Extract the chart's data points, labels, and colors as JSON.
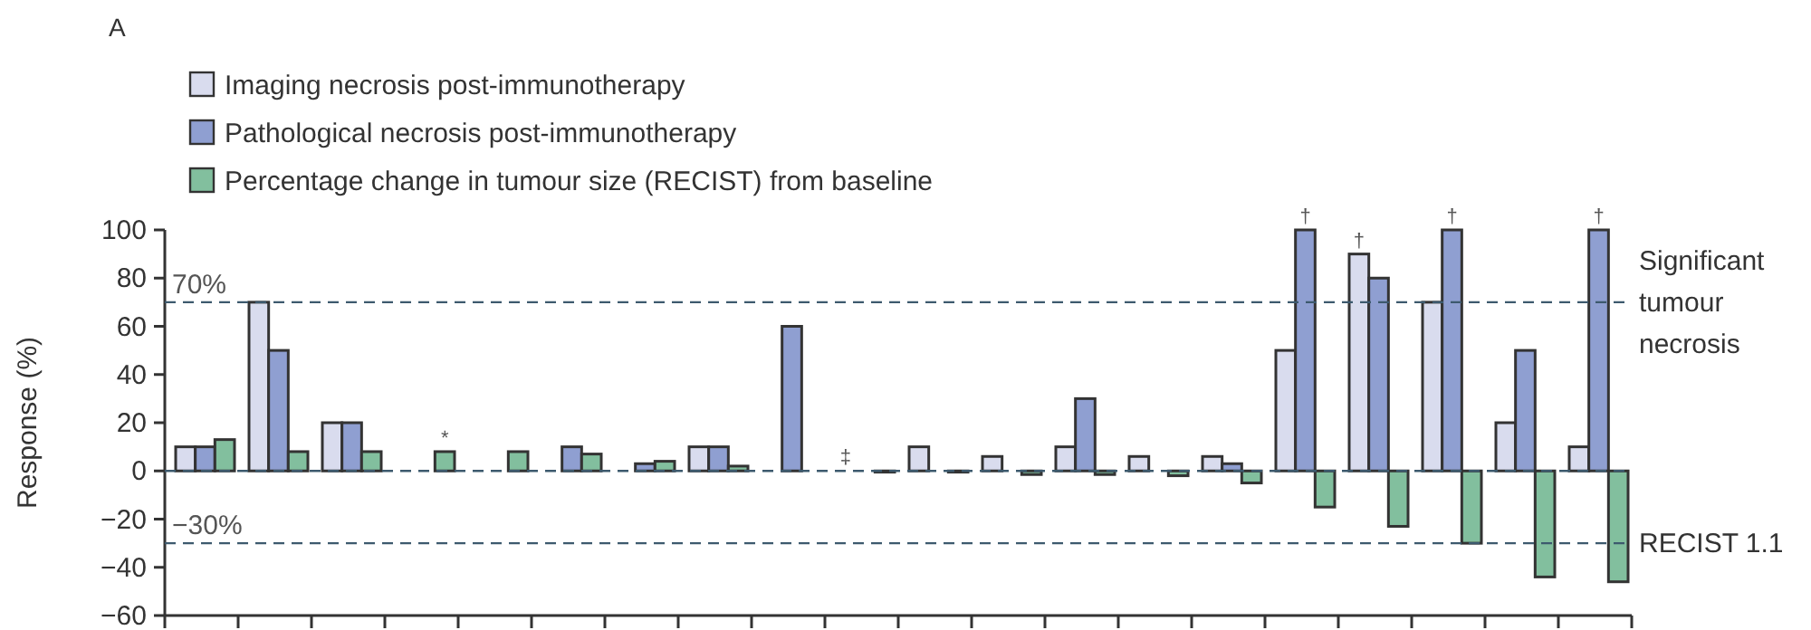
{
  "chart_data": {
    "type": "bar",
    "title": "A",
    "ylabel": "Response (%)",
    "categories": [
      null,
      null,
      null,
      null,
      null,
      null,
      null,
      null,
      null,
      null,
      null,
      null,
      null,
      null,
      null,
      null,
      null,
      null,
      null,
      null
    ],
    "series": [
      {
        "name": "Imaging necrosis post-immunotherapy",
        "color": "#d9dcee",
        "values": [
          10,
          70,
          20,
          null,
          null,
          null,
          null,
          10,
          null,
          null,
          10,
          6,
          10,
          6,
          6,
          50,
          90,
          70,
          20,
          10
        ]
      },
      {
        "name": "Pathological necrosis post-immunotherapy",
        "color": "#8f9fd1",
        "values": [
          10,
          50,
          20,
          null,
          null,
          10,
          3,
          10,
          60,
          null,
          null,
          null,
          30,
          null,
          3,
          100,
          80,
          100,
          50,
          100
        ]
      },
      {
        "name": "Percentage change in tumour size (RECIST)  from baseline",
        "color": "#82bf9e",
        "values": [
          13,
          8,
          8,
          8,
          8,
          7,
          4,
          2,
          null,
          -0.5,
          -0.5,
          -1.5,
          -1.5,
          -2,
          -5,
          -15,
          -23,
          -30,
          -44,
          -46
        ]
      }
    ],
    "ylim": [
      -60,
      100
    ],
    "yticks": [
      -60,
      -40,
      -20,
      0,
      20,
      40,
      60,
      80,
      100
    ],
    "tick_labels": "y",
    "legend": "top left",
    "grid": false,
    "ref_lines": [
      {
        "axis": "y",
        "value": 70,
        "label": "Significant tumour necrosis",
        "line_style": "dashed"
      },
      {
        "axis": "y",
        "value": 0,
        "line_style": "dashed"
      },
      {
        "axis": "y",
        "value": -30,
        "label": "RECIST 1.1",
        "line_style": "dashed"
      }
    ],
    "annotations": [
      {
        "text": "70%",
        "y": 70
      },
      {
        "text": "−30%",
        "y": -30
      },
      "*",
      "‡",
      "†",
      "†",
      "†",
      "†"
    ]
  }
}
